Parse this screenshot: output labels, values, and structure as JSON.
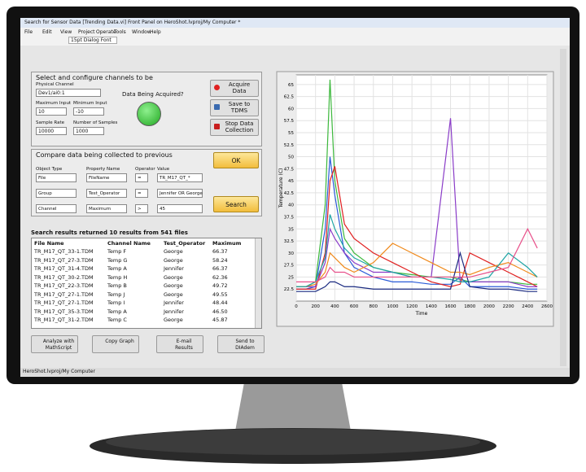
{
  "window": {
    "title": "Search for Sensor Data [Trending Data.vi] Front Panel on HeroShot.lvproj/My Computer *",
    "menu": [
      "File",
      "Edit",
      "View",
      "Project",
      "Operate",
      "Tools",
      "Window",
      "Help"
    ],
    "font": "15pt Dialog Font",
    "status": "HeroShot.lvproj/My Computer"
  },
  "acquire": {
    "heading": "Select and configure channels to be",
    "fields": [
      {
        "label": "Physical Channel",
        "value": "Dev1/ai0:1"
      },
      {
        "label": "Maximum Input",
        "value": "10"
      },
      {
        "label": "Minimum Input",
        "value": "-10"
      },
      {
        "label": "Sample Rate",
        "value": "10000"
      },
      {
        "label": "Number of Samples",
        "value": "1000"
      }
    ],
    "indicator": "Data Being Acquired?",
    "buttons": [
      "Acquire Data",
      "Save to TDMS",
      "Stop Data Collection"
    ]
  },
  "compare": {
    "heading": "Compare data being collected to previous",
    "headers": [
      "Object Type",
      "Property Name",
      "Operator",
      "Value"
    ],
    "rows": [
      [
        "File",
        "FileName",
        "=",
        "TR_M17_QT_*"
      ],
      [
        "Group",
        "Test_Operator",
        "=",
        "Jennifer OR George"
      ],
      [
        "Channel",
        "Maximum",
        ">",
        "45"
      ]
    ],
    "buttons": [
      "OK",
      "Search"
    ]
  },
  "results": {
    "summary": "Search results returned 10 results from 541 files",
    "columns": [
      "File Name",
      "Channel Name",
      "Test_Operator",
      "Maximum"
    ],
    "rows": [
      [
        "TR_M17_QT_33-1.TDM",
        "Temp F",
        "George",
        "66.37"
      ],
      [
        "TR_M17_QT_27-3.TDM",
        "Temp G",
        "George",
        "58.24"
      ],
      [
        "TR_M17_QT_31-4.TDM",
        "Temp A",
        "Jennifer",
        "66.37"
      ],
      [
        "TR_M17_QT_30-2.TDM",
        "Temp H",
        "George",
        "62.36"
      ],
      [
        "TR_M17_QT_22-3.TDM",
        "Temp B",
        "George",
        "49.72"
      ],
      [
        "TR_M17_QT_27-1.TDM",
        "Temp J",
        "George",
        "49.55"
      ],
      [
        "TR_M17_QT_27-1.TDM",
        "Temp I",
        "Jennifer",
        "48.44"
      ],
      [
        "TR_M17_QT_35-3.TDM",
        "Temp A",
        "Jennifer",
        "46.50"
      ],
      [
        "TR_M17_QT_31-2.TDM",
        "Temp C",
        "George",
        "45.87"
      ]
    ]
  },
  "actions": [
    "Analyze with MathScript",
    "Copy Graph",
    "E-mail Results",
    "Send to DIAdem"
  ],
  "chart_data": {
    "type": "line",
    "xlabel": "Time",
    "ylabel": "Temperature (C)",
    "x": [
      0,
      100,
      200,
      300,
      350,
      400,
      500,
      600,
      800,
      1000,
      1200,
      1400,
      1600,
      1700,
      1800,
      2000,
      2200,
      2400,
      2500
    ],
    "series": [
      {
        "color": "#3cb83c",
        "values": [
          23,
          23,
          24,
          40,
          66,
          45,
          33,
          30,
          27,
          26,
          25.5,
          25,
          25,
          24.5,
          24,
          24,
          24,
          23.5,
          23.5
        ]
      },
      {
        "color": "#2a5bd8",
        "values": [
          22.5,
          22.5,
          23,
          35,
          50,
          42,
          30,
          27,
          25,
          24,
          24,
          23.5,
          23.5,
          25,
          23,
          23,
          23,
          22.5,
          22.5
        ]
      },
      {
        "color": "#e02020",
        "values": [
          22.5,
          22.5,
          22.5,
          30,
          45,
          48,
          36,
          33,
          30,
          28,
          26,
          24,
          23,
          23.5,
          30,
          28,
          26,
          24,
          23
        ]
      },
      {
        "color": "#8a3cc8",
        "values": [
          23,
          23,
          23,
          28,
          35,
          33,
          30,
          28,
          26,
          26,
          25,
          25,
          58,
          24,
          24,
          24,
          24,
          23,
          23
        ]
      },
      {
        "color": "#f08a1c",
        "values": [
          23,
          23,
          23.5,
          26,
          30,
          29,
          27,
          26,
          28,
          32,
          30,
          28,
          26,
          26,
          25.5,
          27,
          28,
          26,
          25
        ]
      },
      {
        "color": "#1fa5a5",
        "values": [
          23,
          23,
          24,
          29,
          38,
          35,
          31,
          29,
          27,
          26,
          25,
          25,
          24.5,
          24,
          24,
          25,
          30,
          27,
          25
        ]
      },
      {
        "color": "#1a2a80",
        "values": [
          22,
          22,
          22,
          23,
          24,
          24,
          23,
          23,
          22.5,
          22.5,
          22.5,
          22.5,
          22.5,
          30,
          23,
          22.5,
          22.5,
          22,
          22
        ]
      },
      {
        "color": "#e8508a",
        "values": [
          24,
          24,
          24,
          25,
          27,
          26,
          26,
          25,
          25,
          25,
          25,
          25,
          25,
          25,
          25,
          26,
          27,
          35,
          31
        ]
      }
    ],
    "xlim": [
      0,
      2600
    ],
    "ylim": [
      20,
      67
    ],
    "xticks": [
      0,
      200,
      400,
      600,
      800,
      1000,
      1200,
      1400,
      1600,
      1800,
      2000,
      2200,
      2400,
      2600
    ],
    "yticks": [
      22.5,
      25,
      27.5,
      30,
      32.5,
      35,
      37.5,
      40,
      42.5,
      45,
      47.5,
      50,
      52.5,
      55,
      57.5,
      60,
      62.5,
      65
    ],
    "grid": true
  }
}
